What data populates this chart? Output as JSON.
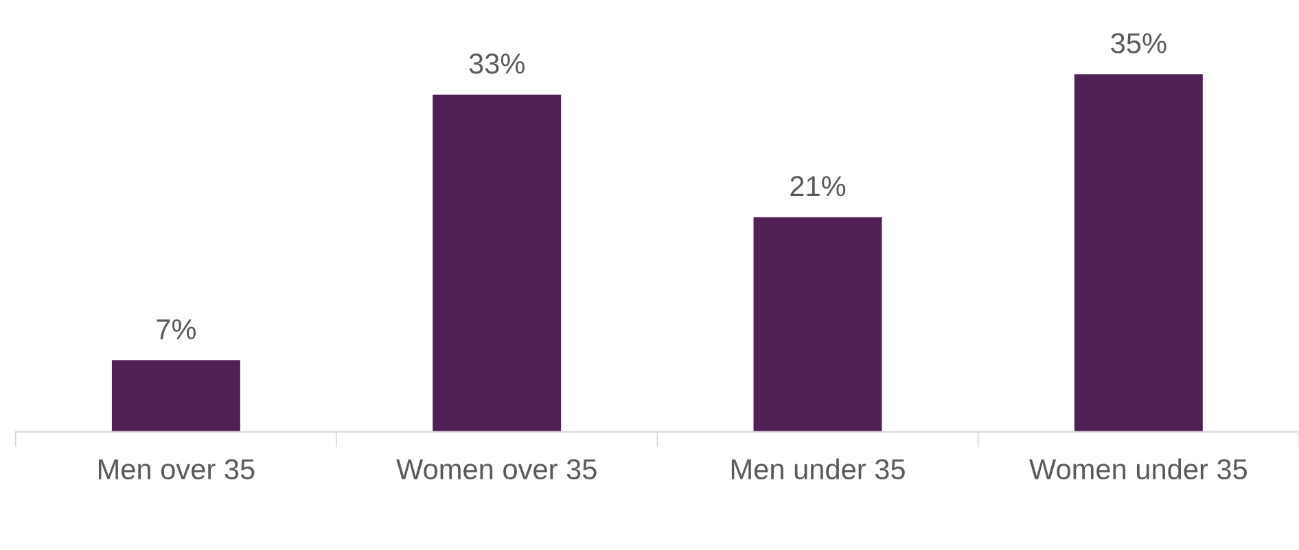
{
  "chart_data": {
    "type": "bar",
    "categories": [
      "Men over 35",
      "Women over 35",
      "Men under 35",
      "Women under 35"
    ],
    "values": [
      7,
      33,
      21,
      35
    ],
    "color": "#4f1f56",
    "data_labels": true,
    "value_labels": [
      "7%",
      "33%",
      "21%",
      "35%"
    ],
    "grid": false,
    "legend": false
  }
}
